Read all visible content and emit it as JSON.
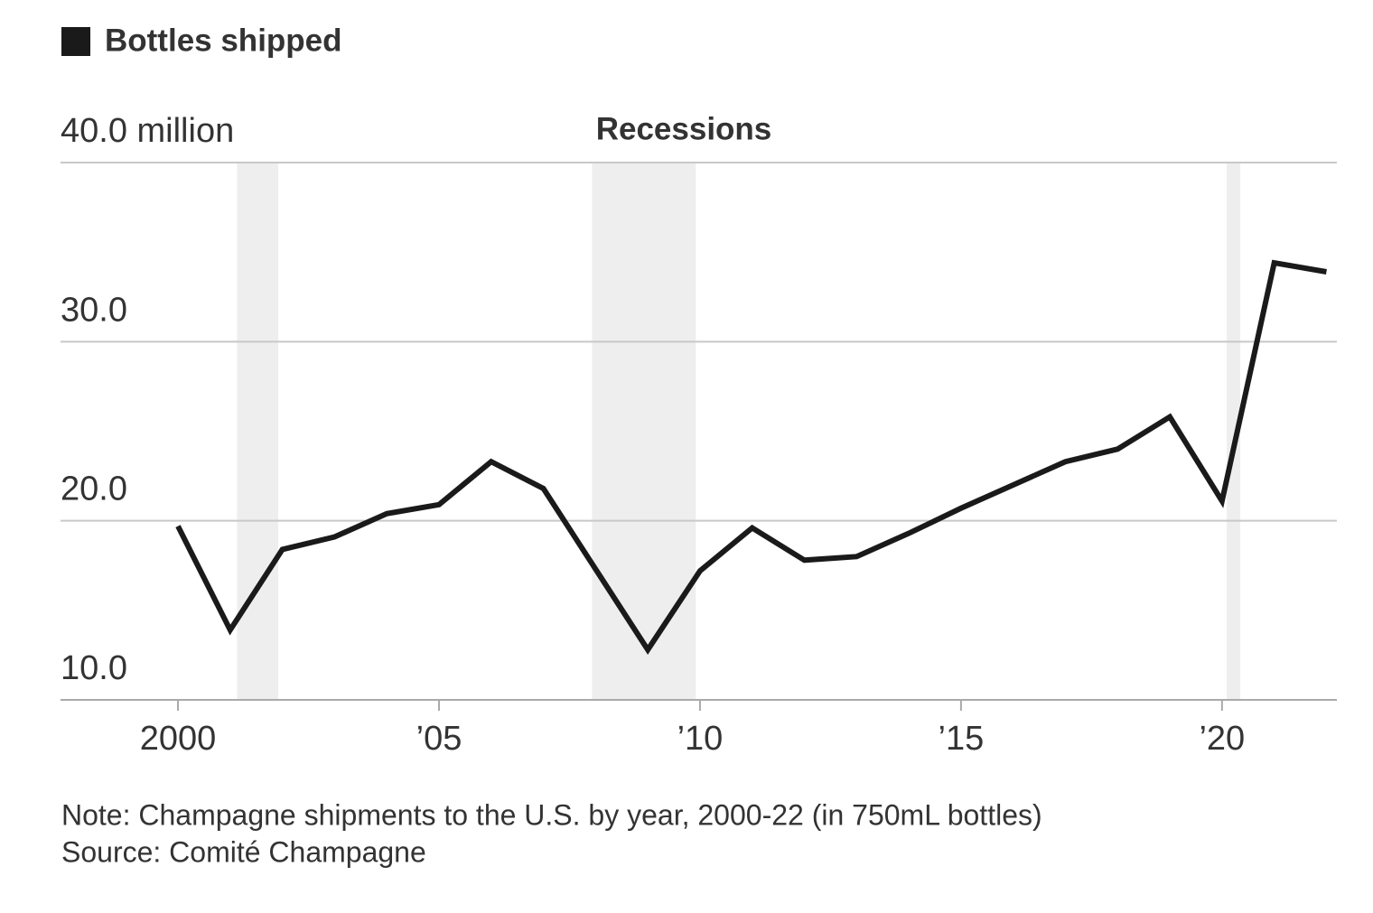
{
  "chart_data": {
    "type": "line",
    "legend": "top-left",
    "x": [
      2000,
      2001,
      2002,
      2003,
      2004,
      2005,
      2006,
      2007,
      2008,
      2009,
      2010,
      2011,
      2012,
      2013,
      2014,
      2015,
      2016,
      2017,
      2018,
      2019,
      2020,
      2021,
      2022
    ],
    "series": [
      {
        "name": "Bottles shipped",
        "color": "#1a1a1a",
        "values": [
          19.7,
          13.9,
          18.4,
          19.1,
          20.4,
          20.9,
          23.3,
          21.8,
          17.3,
          12.8,
          17.2,
          19.6,
          17.8,
          18.0,
          19.3,
          20.7,
          22.0,
          23.3,
          24.0,
          25.8,
          21.1,
          34.4,
          33.9
        ]
      }
    ],
    "xlim": [
      1997.75,
      2022.2
    ],
    "xticks": [
      2000,
      {
        "value": 2005,
        "label": "’05"
      },
      {
        "value": 2010,
        "label": "’10"
      },
      {
        "value": 2015,
        "label": "’15"
      },
      {
        "value": 2020,
        "label": "’20"
      }
    ],
    "ylim": [
      10,
      40
    ],
    "yticks": [
      {
        "value": 10,
        "label": "10.0"
      },
      {
        "value": 20,
        "label": "20.0"
      },
      {
        "value": 30,
        "label": "30.0"
      },
      {
        "value": 40,
        "label": "40.0 million"
      }
    ],
    "grid": true,
    "recessions_label": "Recessions",
    "recessions": [
      [
        2001.13,
        2001.92
      ],
      [
        2007.93,
        2009.92
      ],
      [
        2020.09,
        2020.35
      ]
    ],
    "note": "Note: Champagne shipments to the U.S. by year, 2000-22 (in 750mL bottles)",
    "source": "Source: Comité Champagne"
  }
}
